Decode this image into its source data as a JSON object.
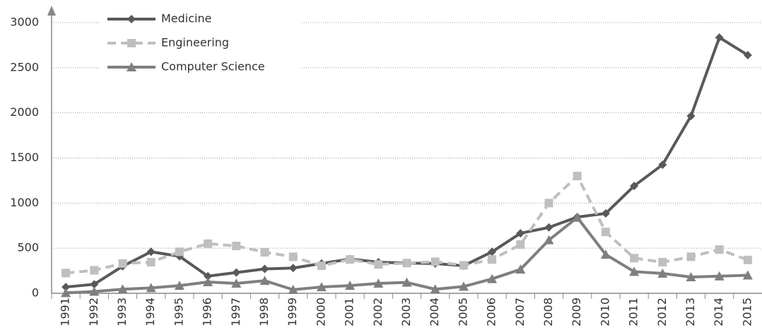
{
  "chart_data": {
    "type": "line",
    "categories": [
      "1991",
      "1992",
      "1993",
      "1994",
      "1995",
      "1996",
      "1997",
      "1998",
      "1999",
      "2000",
      "2001",
      "2002",
      "2003",
      "2004",
      "2005",
      "2006",
      "2007",
      "2008",
      "2009",
      "2010",
      "2011",
      "2012",
      "2013",
      "2014",
      "2015"
    ],
    "series": [
      {
        "name": "Medicine",
        "color": "#595959",
        "marker": "diamond",
        "dashed": false,
        "values": [
          70,
          100,
          300,
          460,
          410,
          190,
          230,
          270,
          280,
          330,
          380,
          345,
          335,
          330,
          305,
          460,
          665,
          730,
          845,
          885,
          1190,
          1425,
          1965,
          2835,
          2640
        ]
      },
      {
        "name": "Engineering",
        "color": "#bfbfbf",
        "marker": "square",
        "dashed": true,
        "values": [
          225,
          255,
          330,
          345,
          460,
          550,
          525,
          455,
          405,
          305,
          375,
          320,
          335,
          350,
          310,
          375,
          540,
          1000,
          1300,
          680,
          390,
          345,
          405,
          485,
          370
        ]
      },
      {
        "name": "Computer Science",
        "color": "#7f7f7f",
        "marker": "triangle",
        "dashed": false,
        "values": [
          5,
          20,
          45,
          60,
          85,
          125,
          110,
          140,
          40,
          70,
          85,
          110,
          120,
          45,
          75,
          160,
          265,
          590,
          840,
          430,
          240,
          220,
          180,
          190,
          200
        ]
      }
    ],
    "ylim": [
      0,
      3000
    ],
    "yticks": [
      0,
      500,
      1000,
      1500,
      2000,
      2500,
      3000
    ],
    "grid": true,
    "legend": "top-left"
  }
}
